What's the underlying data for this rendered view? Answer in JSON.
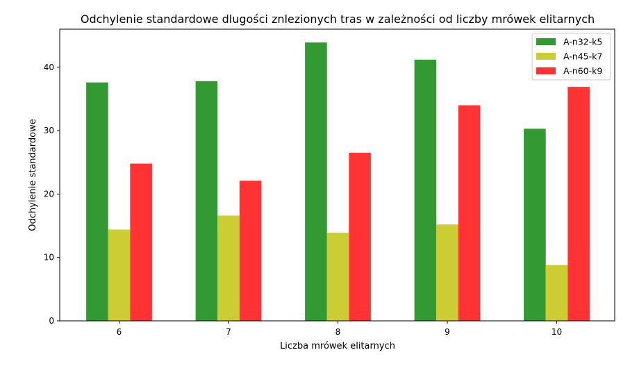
{
  "chart_data": {
    "type": "bar",
    "title": "Odchylenie standardowe dlugości znlezionych tras w zależności od liczby mrówek elitarnych",
    "xlabel": "Liczba mrówek elitarnych",
    "ylabel": "Odchylenie standardowe",
    "categories": [
      "6",
      "7",
      "8",
      "9",
      "10"
    ],
    "ylim": [
      0,
      46
    ],
    "yticks": [
      0,
      10,
      20,
      30,
      40
    ],
    "grid": false,
    "legend_position": "top-right",
    "series": [
      {
        "name": "A-n32-k5",
        "color": "#339933",
        "values": [
          37.6,
          37.8,
          43.9,
          41.2,
          30.3
        ]
      },
      {
        "name": "A-n45-k7",
        "color": "#cccc33",
        "values": [
          14.4,
          16.6,
          13.9,
          15.2,
          8.8
        ]
      },
      {
        "name": "A-n60-k9",
        "color": "#ff3333",
        "values": [
          24.8,
          22.1,
          26.5,
          34.0,
          36.9
        ]
      }
    ]
  }
}
